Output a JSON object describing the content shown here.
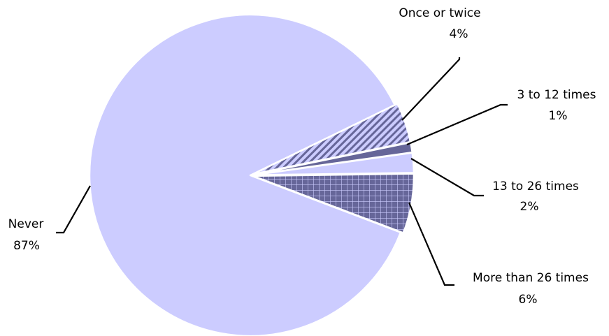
{
  "chart_data": {
    "type": "pie",
    "title": "",
    "slices": [
      {
        "label": "Once or twice",
        "value": 4,
        "display": "4%",
        "color": "#ccccff",
        "pattern": "diagonal-stripes"
      },
      {
        "label": "3 to 12 times",
        "value": 1,
        "display": "1%",
        "color": "#666699",
        "pattern": "solid"
      },
      {
        "label": "13 to 26 times",
        "value": 2,
        "display": "2%",
        "color": "#ccccff",
        "pattern": "solid"
      },
      {
        "label": "More than 26 times",
        "value": 6,
        "display": "6%",
        "color": "#666699",
        "pattern": "grid"
      },
      {
        "label": "Never",
        "value": 87,
        "display": "87%",
        "color": "#ccccff",
        "pattern": "solid"
      }
    ],
    "exploded_slice": "Never",
    "legend": "none"
  }
}
